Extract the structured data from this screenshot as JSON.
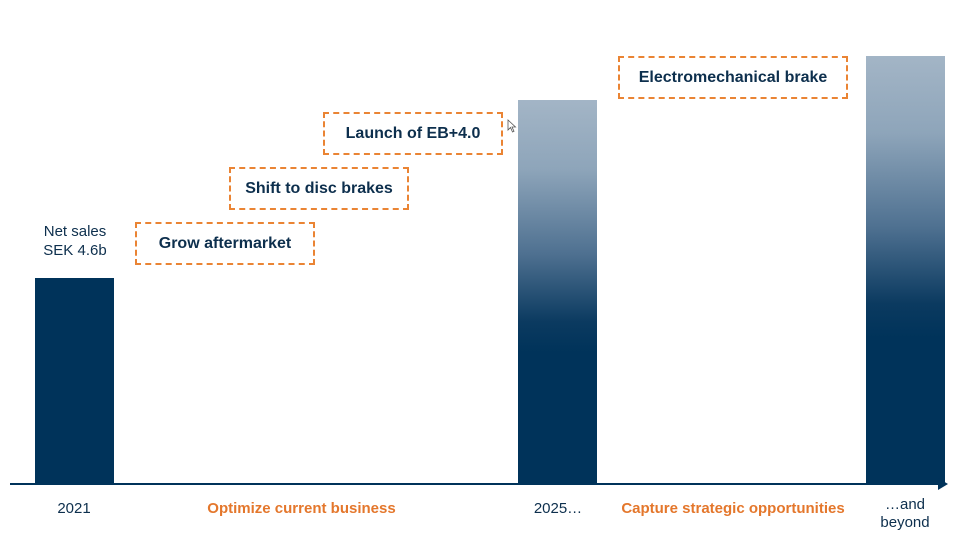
{
  "chart_data": {
    "type": "bar",
    "title": "",
    "categories": [
      "2021",
      "2025…",
      "…and beyond"
    ],
    "values": [
      4.6,
      8.6,
      9.6
    ],
    "value_unit": "SEK b",
    "bar_styles": [
      "solid",
      "gradient",
      "gradient"
    ],
    "ylim": [
      0,
      9.6
    ],
    "grid": false,
    "annotation": {
      "line1": "Net sales",
      "line2": "SEK 4.6b"
    },
    "phases": [
      "Optimize current business",
      "Capture strategic opportunities"
    ],
    "initiatives": [
      "Grow aftermarket",
      "Shift to disc brakes",
      "Launch of EB+4.0",
      "Electromechanical brake"
    ],
    "x_labels": {
      "first": "2021",
      "middle": "2025…",
      "last_line1": "…and",
      "last_line2": "beyond"
    }
  },
  "colors": {
    "bar": "#00335a",
    "accent": "#ea8434",
    "text": "#0d2f4d"
  },
  "icons": {
    "cursor": "mouse-pointer-icon"
  }
}
